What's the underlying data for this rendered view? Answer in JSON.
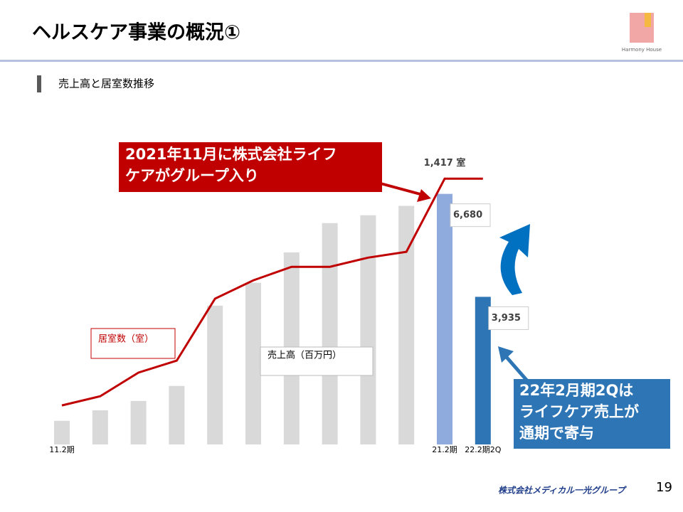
{
  "header": {
    "title": "ヘルスケア事業の概況①",
    "logo": "Harmony House"
  },
  "section_label": "売上高と居室数推移",
  "chart_data": {
    "type": "bar-line",
    "categories": [
      "11.2期",
      null,
      null,
      null,
      null,
      null,
      null,
      null,
      null,
      null,
      "21.2期",
      "22.2期2Q"
    ],
    "series": [
      {
        "name": "売上高（百万円）",
        "type": "bar",
        "colors": [
          "#d9d9d9",
          "#d9d9d9",
          "#d9d9d9",
          "#d9d9d9",
          "#d9d9d9",
          "#d9d9d9",
          "#d9d9d9",
          "#d9d9d9",
          "#d9d9d9",
          "#d9d9d9",
          "#8faadc",
          "#2e75b6"
        ],
        "values": [
          630,
          910,
          1160,
          1560,
          3700,
          4310,
          5120,
          5900,
          6110,
          6360,
          6680,
          3935
        ],
        "value_labels": [
          null,
          null,
          null,
          null,
          null,
          null,
          null,
          null,
          null,
          null,
          "6,680",
          "3,935"
        ]
      },
      {
        "name": "居室数（室）",
        "type": "line",
        "axis": "y2",
        "color": "#c00000",
        "values": [
          208,
          257,
          383,
          447,
          777,
          875,
          947,
          947,
          996,
          1027,
          1417,
          1417
        ],
        "value_labels": [
          null,
          null,
          null,
          null,
          null,
          null,
          null,
          null,
          null,
          null,
          "1,417 室",
          null
        ]
      }
    ],
    "ylim": [
      0,
      8000
    ],
    "y2lim": [
      0,
      1600
    ],
    "annotations": [
      {
        "lines": [
          "2021年11月に株式会社ライフ",
          "ケアがグループ入り"
        ],
        "color": "#c00000"
      },
      {
        "lines": [
          "22年2月期2Qは",
          "ライフケア売上が",
          "通期で寄与"
        ],
        "color": "#2e75b6"
      }
    ]
  },
  "footer": {
    "company": "株式会社メディカル一光グループ",
    "page": "19"
  }
}
